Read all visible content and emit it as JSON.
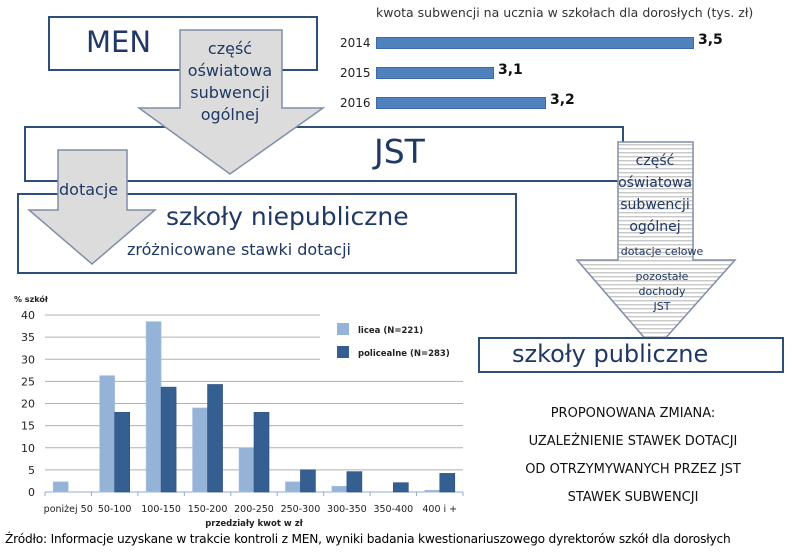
{
  "diagram": {
    "men_label": "MEN",
    "jst_label": "JST",
    "arrow_men_jst": [
      "część",
      "oświatowa",
      "subwencji",
      "ogólnej"
    ],
    "arrow_dotacje": "dotacje",
    "niepubliczne_title": "szkoły niepubliczne",
    "niepubliczne_subtitle": "zróżnicowane stawki dotacji",
    "arrow_jst_public": [
      "część",
      "oświatowa",
      "subwencji",
      "ogólnej"
    ],
    "arrow_dotacje_celowe": "dotacje celowe",
    "arrow_pozostale": [
      "pozostałe",
      "dochody",
      "JST"
    ],
    "publiczne_title": "szkoły publiczne",
    "proposal": [
      "PROPONOWANA ZMIANA:",
      "UZALEŻNIENIE  STAWEK DOTACJI",
      "OD OTRZYMYWANYCH  PRZEZ JST",
      "STAWEK SUBWENCJI"
    ]
  },
  "source": "Źródło: Informacje uzyskane w trakcie kontroli z MEN, wyniki badania kwestionariuszowego dyrektorów szkół dla dorosłych",
  "colors": {
    "navy": "#1f3864",
    "border": "#2e4f7a",
    "bar_blue": "#4f81bd",
    "licea": "#95b3d7",
    "policealne": "#365f91",
    "arrow_fill": "#dcdcdc"
  },
  "chart_data": [
    {
      "type": "bar",
      "orientation": "horizontal",
      "title": "kwota subwencji na ucznia w szkołach dla dorosłych (tys. zł)",
      "categories": [
        "2014",
        "2015",
        "2016"
      ],
      "values": [
        3.5,
        3.1,
        3.2
      ],
      "value_labels": [
        "3,5",
        "3,1",
        "3,2"
      ],
      "xlabel": "",
      "ylabel": "",
      "grid": false
    },
    {
      "type": "bar",
      "title": "",
      "ylabel": "% szkół",
      "xlabel": "przedziały kwot w zł",
      "categories": [
        "poniżej 50",
        "50-100",
        "100-150",
        "150-200",
        "200-250",
        "250-300",
        "300-350",
        "350-400",
        "400 i +"
      ],
      "series": [
        {
          "name": "licea (N=221)",
          "values": [
            2.3,
            26.3,
            38.5,
            19.0,
            10.0,
            2.3,
            1.3,
            0.0,
            0.4
          ]
        },
        {
          "name": "policealne (N=283)",
          "values": [
            0.0,
            18.0,
            23.7,
            24.3,
            18.0,
            5.0,
            4.6,
            2.1,
            4.2
          ]
        }
      ],
      "ylim": [
        0,
        40
      ],
      "yticks": [
        "0",
        "5",
        "10",
        "15",
        "20",
        "25",
        "30",
        "35",
        "40"
      ],
      "grid": true,
      "legend_position": "top-right"
    }
  ]
}
